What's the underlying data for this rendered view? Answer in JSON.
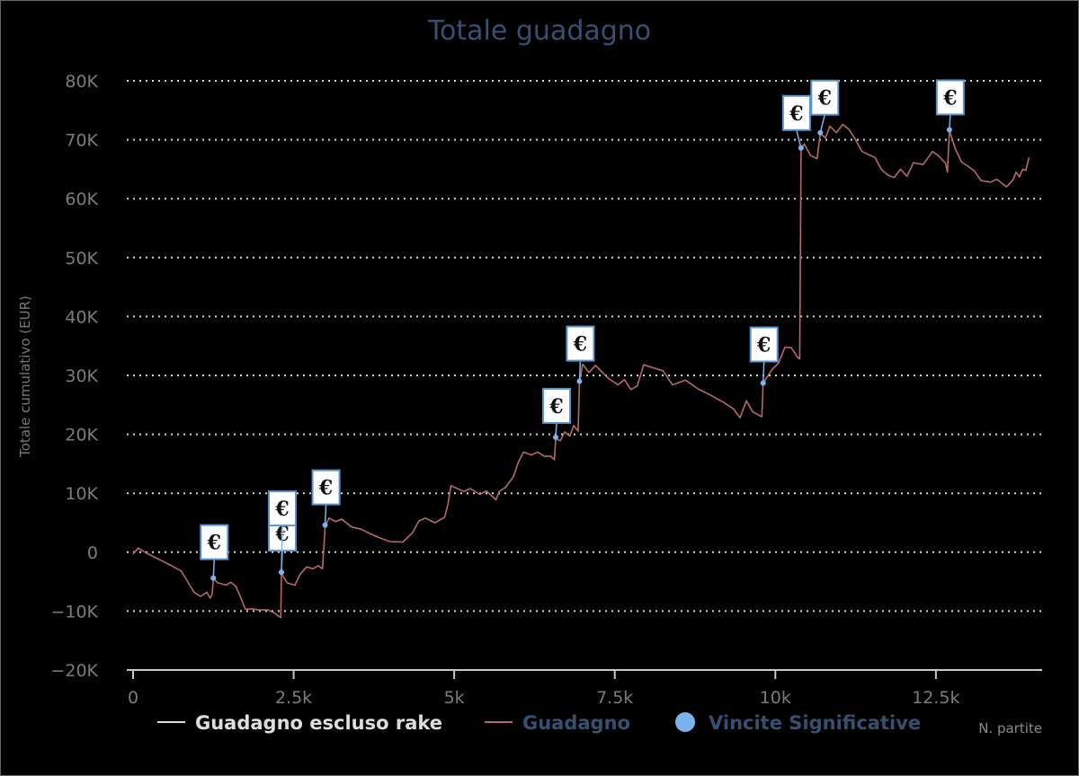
{
  "colors": {
    "background": "#000000",
    "title": "#36506f",
    "grid": "#d8d8d8",
    "axis": "#c8c8c8",
    "series_guadagno": "#b56a68",
    "series_escluso_rake": "#dddddd",
    "marker": "#7cb3ec",
    "flag_border": "#5b95cf",
    "legend_blue": "#36506f",
    "legend_white": "#dddddd"
  },
  "icons": {
    "flag_glyph": "€"
  },
  "chart_data": {
    "type": "line",
    "title": "Totale guadagno",
    "ylabel": "Totale cumulativo (EUR)",
    "xlabel": "N. partite",
    "xlim": [
      -200,
      14200
    ],
    "ylim": [
      -20000,
      80000
    ],
    "y_ticks": [
      {
        "value": -20000,
        "label": "−20K"
      },
      {
        "value": -10000,
        "label": "−10K"
      },
      {
        "value": 0,
        "label": "0"
      },
      {
        "value": 10000,
        "label": "10K"
      },
      {
        "value": 20000,
        "label": "20K"
      },
      {
        "value": 30000,
        "label": "30K"
      },
      {
        "value": 40000,
        "label": "40K"
      },
      {
        "value": 50000,
        "label": "50K"
      },
      {
        "value": 60000,
        "label": "60K"
      },
      {
        "value": 70000,
        "label": "70K"
      },
      {
        "value": 80000,
        "label": "80K"
      }
    ],
    "x_ticks": [
      {
        "value": 0,
        "label": "0"
      },
      {
        "value": 2500,
        "label": "2.5k"
      },
      {
        "value": 5000,
        "label": "5k"
      },
      {
        "value": 7500,
        "label": "7.5k"
      },
      {
        "value": 10000,
        "label": "10k"
      },
      {
        "value": 12500,
        "label": "12.5k"
      }
    ],
    "grid": true,
    "legend": {
      "placement": "bottom",
      "items": [
        {
          "label": "Guadagno escluso rake",
          "symbol": "line",
          "color": "#dddddd"
        },
        {
          "label": "Guadagno",
          "symbol": "line",
          "color": "#b56a68"
        },
        {
          "label": "Vincite Significative",
          "symbol": "circle",
          "color": "#7cb3ec"
        }
      ]
    },
    "series": [
      {
        "name": "Guadagno",
        "points": [
          [
            0,
            -300
          ],
          [
            80,
            700
          ],
          [
            200,
            -100
          ],
          [
            400,
            -1200
          ],
          [
            600,
            -2300
          ],
          [
            750,
            -3200
          ],
          [
            850,
            -5000
          ],
          [
            950,
            -6800
          ],
          [
            1050,
            -7500
          ],
          [
            1150,
            -6800
          ],
          [
            1200,
            -7800
          ],
          [
            1230,
            -7200
          ],
          [
            1250,
            -4500
          ],
          [
            1320,
            -5200
          ],
          [
            1450,
            -5600
          ],
          [
            1520,
            -5100
          ],
          [
            1600,
            -5800
          ],
          [
            1680,
            -7800
          ],
          [
            1750,
            -9700
          ],
          [
            1850,
            -9600
          ],
          [
            1950,
            -9800
          ],
          [
            2100,
            -9800
          ],
          [
            2200,
            -10300
          ],
          [
            2270,
            -10900
          ],
          [
            2300,
            -11100
          ],
          [
            2310,
            -3600
          ],
          [
            2400,
            -5200
          ],
          [
            2520,
            -5600
          ],
          [
            2600,
            -3800
          ],
          [
            2700,
            -2500
          ],
          [
            2800,
            -2800
          ],
          [
            2880,
            -2300
          ],
          [
            2950,
            -2800
          ],
          [
            2990,
            4400
          ],
          [
            3050,
            5800
          ],
          [
            3150,
            5200
          ],
          [
            3250,
            5600
          ],
          [
            3400,
            4300
          ],
          [
            3550,
            3900
          ],
          [
            3700,
            3100
          ],
          [
            3850,
            2400
          ],
          [
            4000,
            1800
          ],
          [
            4200,
            1700
          ],
          [
            4350,
            3300
          ],
          [
            4450,
            5300
          ],
          [
            4550,
            5800
          ],
          [
            4700,
            5000
          ],
          [
            4850,
            5900
          ],
          [
            4900,
            8000
          ],
          [
            4950,
            11300
          ],
          [
            5050,
            10800
          ],
          [
            5150,
            10300
          ],
          [
            5250,
            10800
          ],
          [
            5400,
            9800
          ],
          [
            5500,
            10400
          ],
          [
            5650,
            8900
          ],
          [
            5700,
            10300
          ],
          [
            5800,
            11000
          ],
          [
            5920,
            12800
          ],
          [
            6000,
            15300
          ],
          [
            6080,
            17000
          ],
          [
            6200,
            16500
          ],
          [
            6300,
            17000
          ],
          [
            6400,
            16300
          ],
          [
            6500,
            16300
          ],
          [
            6560,
            15700
          ],
          [
            6580,
            19300
          ],
          [
            6650,
            18900
          ],
          [
            6720,
            20400
          ],
          [
            6800,
            19700
          ],
          [
            6860,
            21500
          ],
          [
            6930,
            20500
          ],
          [
            6950,
            28800
          ],
          [
            7000,
            31900
          ],
          [
            7100,
            30500
          ],
          [
            7200,
            31700
          ],
          [
            7400,
            29500
          ],
          [
            7550,
            28400
          ],
          [
            7650,
            29300
          ],
          [
            7750,
            27600
          ],
          [
            7850,
            28200
          ],
          [
            7950,
            31800
          ],
          [
            8100,
            31300
          ],
          [
            8250,
            30800
          ],
          [
            8400,
            28400
          ],
          [
            8600,
            29200
          ],
          [
            8800,
            27700
          ],
          [
            9000,
            26600
          ],
          [
            9200,
            25400
          ],
          [
            9350,
            24300
          ],
          [
            9450,
            22800
          ],
          [
            9550,
            25700
          ],
          [
            9650,
            23800
          ],
          [
            9750,
            23200
          ],
          [
            9790,
            23000
          ],
          [
            9810,
            28700
          ],
          [
            9950,
            31000
          ],
          [
            10050,
            32100
          ],
          [
            10150,
            34800
          ],
          [
            10250,
            34700
          ],
          [
            10350,
            33000
          ],
          [
            10380,
            32800
          ],
          [
            10400,
            68500
          ],
          [
            10450,
            69300
          ],
          [
            10550,
            67300
          ],
          [
            10650,
            66800
          ],
          [
            10700,
            71100
          ],
          [
            10780,
            70300
          ],
          [
            10850,
            72300
          ],
          [
            10950,
            71200
          ],
          [
            11050,
            72600
          ],
          [
            11150,
            71700
          ],
          [
            11250,
            70000
          ],
          [
            11350,
            68000
          ],
          [
            11450,
            67500
          ],
          [
            11550,
            67000
          ],
          [
            11650,
            65000
          ],
          [
            11750,
            64000
          ],
          [
            11850,
            63600
          ],
          [
            11950,
            65000
          ],
          [
            12050,
            63800
          ],
          [
            12150,
            66100
          ],
          [
            12300,
            65800
          ],
          [
            12450,
            68000
          ],
          [
            12550,
            67200
          ],
          [
            12650,
            66000
          ],
          [
            12680,
            64500
          ],
          [
            12710,
            71600
          ],
          [
            12800,
            68500
          ],
          [
            12900,
            66200
          ],
          [
            13000,
            65500
          ],
          [
            13100,
            64700
          ],
          [
            13200,
            63100
          ],
          [
            13350,
            62800
          ],
          [
            13450,
            63300
          ],
          [
            13600,
            62000
          ],
          [
            13700,
            63200
          ],
          [
            13750,
            64500
          ],
          [
            13800,
            63700
          ],
          [
            13850,
            65000
          ],
          [
            13900,
            64800
          ],
          [
            13950,
            67000
          ]
        ]
      },
      {
        "name": "Vincite Significative",
        "points": [
          [
            1250,
            -4400
          ],
          [
            2310,
            -3400
          ],
          [
            2310,
            -3400
          ],
          [
            2990,
            4600
          ],
          [
            6580,
            19500
          ],
          [
            6950,
            29000
          ],
          [
            9810,
            28700
          ],
          [
            10400,
            68600
          ],
          [
            10700,
            71200
          ],
          [
            12710,
            71700
          ]
        ]
      }
    ]
  }
}
